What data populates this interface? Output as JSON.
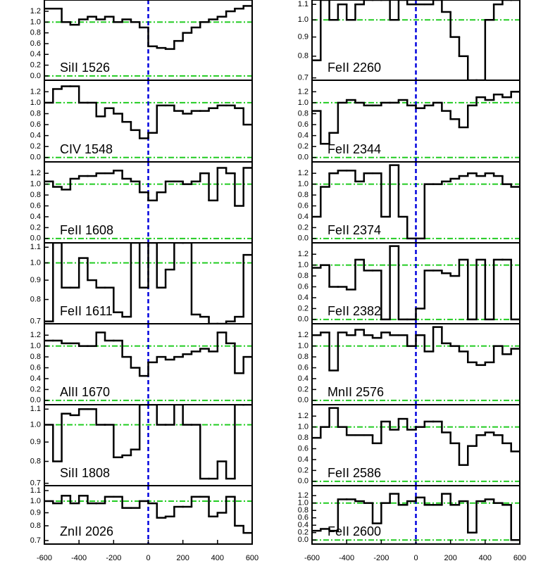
{
  "chart_data": {
    "type": "step",
    "x": [
      -575,
      -525,
      -475,
      -425,
      -375,
      -325,
      -275,
      -225,
      -175,
      -125,
      -75,
      -25,
      25,
      75,
      125,
      175,
      225,
      275,
      325,
      375,
      425,
      475,
      525,
      575
    ],
    "xlim": [
      -600,
      600
    ],
    "xticks": [
      -600,
      -400,
      -200,
      0,
      200,
      400,
      600
    ],
    "hlines": [
      0,
      1
    ],
    "hline_color": "#22cc22",
    "vline": 0,
    "vline_color": "#0000dd",
    "line_color": "#000000",
    "panels": [
      {
        "label": "SiII 1526",
        "log": false,
        "ylim": [
          -0.08,
          1.41
        ],
        "yticks": [
          {
            "value": 0,
            "label": "0.0"
          },
          0.2,
          0.4,
          0.6,
          0.8,
          {
            "value": 1,
            "label": "1.0"
          },
          1.2
        ],
        "values": [
          1.25,
          1.25,
          1.0,
          0.95,
          1.05,
          1.1,
          1.05,
          1.1,
          1.0,
          1.05,
          1.0,
          0.9,
          0.55,
          0.52,
          0.5,
          0.65,
          0.8,
          0.9,
          1.0,
          1.05,
          1.1,
          1.2,
          1.25,
          1.3
        ]
      },
      {
        "label": "CIV 1548",
        "log": false,
        "ylim": [
          -0.08,
          1.41
        ],
        "yticks": [
          {
            "value": 0,
            "label": "0.0"
          },
          0.2,
          0.4,
          0.6,
          0.8,
          {
            "value": 1,
            "label": "1.0"
          },
          1.2
        ],
        "values": [
          1.0,
          1.25,
          1.3,
          1.3,
          1.0,
          1.0,
          0.75,
          0.9,
          0.8,
          0.65,
          0.5,
          0.35,
          0.45,
          0.95,
          0.95,
          0.85,
          0.8,
          0.85,
          0.85,
          0.9,
          0.95,
          0.95,
          0.9,
          0.6
        ]
      },
      {
        "label": "FeII 1608",
        "log": false,
        "ylim": [
          -0.08,
          1.41
        ],
        "yticks": [
          {
            "value": 0,
            "label": "0.0"
          },
          0.2,
          0.4,
          0.6,
          0.8,
          {
            "value": 1,
            "label": "1.0"
          },
          1.2
        ],
        "values": [
          1.05,
          0.95,
          0.9,
          1.1,
          1.15,
          1.15,
          1.2,
          1.2,
          1.25,
          1.1,
          1.05,
          0.85,
          0.7,
          0.85,
          1.05,
          1.05,
          1.0,
          1.05,
          1.2,
          0.7,
          1.3,
          1.2,
          0.6,
          1.3
        ]
      },
      {
        "label": "FeII 1611",
        "log": true,
        "ylim": [
          0.69,
          1.13
        ],
        "yticks": [
          0.7,
          0.8,
          0.9,
          {
            "value": 1,
            "label": "1.0"
          },
          1.1
        ],
        "values": [
          0.7,
          1.13,
          0.86,
          0.86,
          1.03,
          0.9,
          0.86,
          0.86,
          0.74,
          0.72,
          1.13,
          0.86,
          1.13,
          0.86,
          0.96,
          1.13,
          1.13,
          0.73,
          0.72,
          0.69,
          0.69,
          0.7,
          0.72,
          1.05
        ]
      },
      {
        "label": "AlII 1670",
        "log": false,
        "ylim": [
          -0.08,
          1.41
        ],
        "yticks": [
          {
            "value": 0,
            "label": "0.0"
          },
          0.2,
          0.4,
          0.6,
          0.8,
          {
            "value": 1,
            "label": "1.0"
          },
          1.2
        ],
        "values": [
          1.1,
          1.1,
          1.05,
          1.05,
          1.0,
          1.0,
          1.25,
          1.1,
          1.1,
          0.8,
          0.6,
          0.45,
          0.7,
          0.8,
          0.75,
          0.8,
          0.85,
          0.9,
          0.95,
          0.9,
          1.25,
          1.05,
          0.5,
          0.8
        ]
      },
      {
        "label": "SiII 1808",
        "log": true,
        "ylim": [
          0.69,
          1.13
        ],
        "yticks": [
          0.7,
          0.8,
          0.9,
          {
            "value": 1,
            "label": "1.0"
          },
          1.1
        ],
        "values": [
          1.0,
          0.8,
          1.07,
          1.06,
          1.1,
          1.1,
          1.0,
          1.0,
          0.82,
          0.83,
          0.86,
          1.13,
          1.13,
          1.0,
          1.0,
          1.13,
          1.0,
          1.0,
          0.72,
          0.72,
          0.8,
          0.72,
          1.13,
          1.13
        ]
      },
      {
        "label": "ZnII 2026",
        "log": true,
        "ylim": [
          0.678,
          1.15
        ],
        "yticks": [
          0.7,
          0.8,
          0.9,
          {
            "value": 1,
            "label": "1.0"
          },
          1.1
        ],
        "values": [
          1.0,
          0.98,
          1.05,
          0.98,
          1.05,
          0.98,
          0.98,
          1.04,
          1.04,
          0.94,
          0.94,
          1.0,
          0.98,
          0.86,
          0.87,
          0.95,
          0.95,
          1.04,
          1.04,
          0.87,
          0.9,
          1.04,
          0.8,
          0.75
        ]
      },
      {
        "label": "FeII 2260",
        "log": true,
        "ylim": [
          0.69,
          1.13
        ],
        "yticks": [
          0.7,
          0.8,
          0.9,
          {
            "value": 1,
            "label": "1.0"
          },
          1.1
        ],
        "values": [
          0.78,
          1.13,
          1.0,
          1.1,
          1.0,
          1.1,
          1.13,
          1.13,
          1.13,
          1.0,
          1.13,
          1.1,
          1.1,
          1.1,
          1.13,
          1.05,
          0.9,
          0.8,
          0.69,
          0.69,
          1.0,
          1.1,
          1.13,
          1.13
        ]
      },
      {
        "label": "FeII 2344",
        "log": false,
        "ylim": [
          -0.08,
          1.41
        ],
        "yticks": [
          {
            "value": 0,
            "label": "0.0"
          },
          0.2,
          0.4,
          0.6,
          0.8,
          {
            "value": 1,
            "label": "1.0"
          },
          1.2
        ],
        "values": [
          0.85,
          0.25,
          0.45,
          1.0,
          1.05,
          1.0,
          0.95,
          0.95,
          1.0,
          1.0,
          1.05,
          0.95,
          0.9,
          0.95,
          1.0,
          0.85,
          0.7,
          0.55,
          0.95,
          1.1,
          1.05,
          1.15,
          1.1,
          1.2
        ]
      },
      {
        "label": "FeII 2374",
        "log": false,
        "ylim": [
          -0.08,
          1.41
        ],
        "yticks": [
          {
            "value": 0,
            "label": "0.0"
          },
          0.2,
          0.4,
          0.6,
          0.8,
          {
            "value": 1,
            "label": "1.0"
          },
          1.2
        ],
        "values": [
          0.4,
          0.95,
          1.2,
          1.25,
          1.25,
          1.05,
          1.2,
          1.2,
          0.4,
          1.35,
          0.4,
          0.0,
          0.0,
          1.0,
          1.0,
          1.05,
          1.1,
          1.15,
          1.2,
          1.15,
          1.2,
          1.15,
          1.0,
          0.95
        ]
      },
      {
        "label": "FeII 2382",
        "log": false,
        "ylim": [
          -0.08,
          1.41
        ],
        "yticks": [
          {
            "value": 0,
            "label": "0.0"
          },
          0.2,
          0.4,
          0.6,
          0.8,
          {
            "value": 1,
            "label": "1.0"
          },
          1.2
        ],
        "values": [
          0.95,
          1.0,
          0.6,
          0.6,
          0.55,
          1.1,
          0.9,
          0.9,
          0.0,
          1.35,
          0.0,
          0.0,
          0.2,
          0.9,
          0.9,
          0.85,
          0.8,
          1.1,
          0.0,
          1.1,
          0.0,
          1.1,
          1.1,
          0.0
        ]
      },
      {
        "label": "MnII 2576",
        "log": false,
        "ylim": [
          -0.08,
          1.41
        ],
        "yticks": [
          {
            "value": 0,
            "label": "0.0"
          },
          0.2,
          0.4,
          0.6,
          0.8,
          {
            "value": 1,
            "label": "1.0"
          },
          1.2
        ],
        "values": [
          1.2,
          1.25,
          0.55,
          1.25,
          1.2,
          1.3,
          1.2,
          1.15,
          1.25,
          1.2,
          1.2,
          1.0,
          1.2,
          0.9,
          1.35,
          1.05,
          1.0,
          0.9,
          0.7,
          0.65,
          0.7,
          1.0,
          0.85,
          0.95
        ]
      },
      {
        "label": "FeII 2586",
        "log": false,
        "ylim": [
          -0.08,
          1.41
        ],
        "yticks": [
          {
            "value": 0,
            "label": "0.0"
          },
          0.2,
          0.4,
          0.6,
          0.8,
          {
            "value": 1,
            "label": "1.0"
          },
          1.2
        ],
        "values": [
          0.8,
          1.0,
          1.35,
          1.0,
          0.85,
          0.85,
          0.85,
          0.7,
          1.1,
          0.95,
          1.15,
          0.95,
          1.0,
          1.1,
          1.1,
          0.9,
          0.7,
          0.3,
          0.65,
          0.85,
          0.9,
          0.85,
          0.7,
          0.55
        ]
      },
      {
        "label": "FeII 2600",
        "log": false,
        "ylim": [
          -0.11,
          1.47
        ],
        "yticks": [
          {
            "value": 0,
            "label": "0.0"
          },
          0.2,
          0.4,
          0.6,
          0.8,
          {
            "value": 1,
            "label": "1.0"
          },
          1.2
        ],
        "values": [
          0.25,
          0.3,
          0.25,
          1.1,
          1.1,
          1.05,
          1.0,
          0.45,
          1.0,
          1.25,
          0.95,
          1.05,
          1.15,
          0.95,
          0.95,
          1.25,
          0.95,
          1.05,
          0.2,
          1.05,
          1.1,
          1.0,
          0.95,
          0.0
        ]
      }
    ]
  }
}
